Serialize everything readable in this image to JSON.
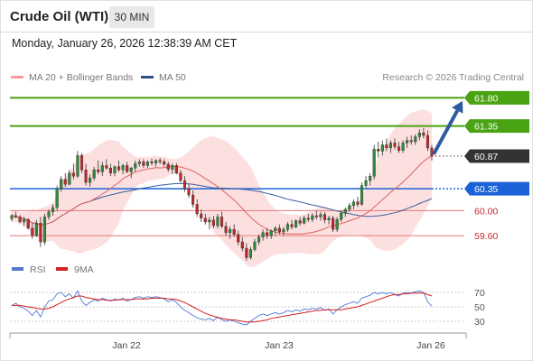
{
  "header": {
    "title": "Crude Oil (WTI)",
    "timeframe": "30 MIN"
  },
  "datetime": "Monday, January 26, 2026 12:38:39 AM CET",
  "legend": {
    "ma20_bb": "MA 20 + Bollinger Bands",
    "ma50": "MA 50"
  },
  "credit": "Research © 2026 Trading Central",
  "rsi_legend": {
    "rsi": "RSI",
    "ma9": "9MA"
  },
  "colors": {
    "up": "#2e8b3a",
    "down": "#c0282b",
    "bollinger_fill": "#fbd6d6",
    "ma20": "#e06060",
    "ma50": "#3a5fa0",
    "resistance": "#4aa312",
    "pivot": "#1a62d6",
    "support": "#e87878",
    "current": "#333333",
    "rsi": "#4a78d8",
    "rsi_ma": "#d42020",
    "arrow": "#2e5aa0"
  },
  "chart_data": {
    "type": "candlestick",
    "x_ticks": [
      "Jan 22",
      "Jan 23",
      "Jan 26"
    ],
    "ylim": [
      59.3,
      61.95
    ],
    "levels": [
      {
        "label": "61.80",
        "value": 61.8,
        "kind": "resistance"
      },
      {
        "label": "61.35",
        "value": 61.35,
        "kind": "resistance"
      },
      {
        "label": "60.87",
        "value": 60.87,
        "kind": "current"
      },
      {
        "label": "60.35",
        "value": 60.35,
        "kind": "pivot"
      },
      {
        "label": "60.00",
        "value": 60.0,
        "kind": "support"
      },
      {
        "label": "59.60",
        "value": 59.6,
        "kind": "support"
      }
    ],
    "forecast_arrow": {
      "from": 60.9,
      "to": 61.75
    },
    "ohlc": [
      [
        59.87,
        59.95,
        59.83,
        59.92
      ],
      [
        59.92,
        59.98,
        59.88,
        59.9
      ],
      [
        59.9,
        59.93,
        59.8,
        59.82
      ],
      [
        59.82,
        59.9,
        59.75,
        59.86
      ],
      [
        59.86,
        59.88,
        59.7,
        59.72
      ],
      [
        59.72,
        59.8,
        59.55,
        59.6
      ],
      [
        59.6,
        59.85,
        59.58,
        59.8
      ],
      [
        59.8,
        59.9,
        59.42,
        59.5
      ],
      [
        59.5,
        59.95,
        59.45,
        59.9
      ],
      [
        59.9,
        60.02,
        59.85,
        59.98
      ],
      [
        59.98,
        60.1,
        59.92,
        60.05
      ],
      [
        60.05,
        60.4,
        60.0,
        60.35
      ],
      [
        60.35,
        60.55,
        60.3,
        60.5
      ],
      [
        60.5,
        60.6,
        60.38,
        60.42
      ],
      [
        60.42,
        60.65,
        60.4,
        60.6
      ],
      [
        60.6,
        60.75,
        60.5,
        60.55
      ],
      [
        60.55,
        60.95,
        60.52,
        60.88
      ],
      [
        60.88,
        60.92,
        60.6,
        60.65
      ],
      [
        60.65,
        60.75,
        60.4,
        60.45
      ],
      [
        60.45,
        60.58,
        60.38,
        60.52
      ],
      [
        60.52,
        60.7,
        60.48,
        60.65
      ],
      [
        60.65,
        60.8,
        60.58,
        60.62
      ],
      [
        60.62,
        60.78,
        60.55,
        60.72
      ],
      [
        60.72,
        60.82,
        60.65,
        60.68
      ],
      [
        60.68,
        60.75,
        60.55,
        60.6
      ],
      [
        60.6,
        60.72,
        60.55,
        60.7
      ],
      [
        60.7,
        60.8,
        60.62,
        60.65
      ],
      [
        60.65,
        60.75,
        60.58,
        60.72
      ],
      [
        60.72,
        60.78,
        60.6,
        60.62
      ],
      [
        60.62,
        60.7,
        60.52,
        60.68
      ],
      [
        60.68,
        60.8,
        60.62,
        60.75
      ],
      [
        60.75,
        60.82,
        60.7,
        60.78
      ],
      [
        60.78,
        60.82,
        60.68,
        60.72
      ],
      [
        60.72,
        60.8,
        60.68,
        60.78
      ],
      [
        60.78,
        60.83,
        60.72,
        60.76
      ],
      [
        60.76,
        60.82,
        60.7,
        60.8
      ],
      [
        60.8,
        60.84,
        60.74,
        60.78
      ],
      [
        60.78,
        60.82,
        60.7,
        60.74
      ],
      [
        60.74,
        60.78,
        60.62,
        60.66
      ],
      [
        60.66,
        60.75,
        60.58,
        60.72
      ],
      [
        60.72,
        60.76,
        60.58,
        60.6
      ],
      [
        60.6,
        60.65,
        60.45,
        60.48
      ],
      [
        60.48,
        60.55,
        60.3,
        60.35
      ],
      [
        60.35,
        60.42,
        60.2,
        60.25
      ],
      [
        60.25,
        60.32,
        60.05,
        60.1
      ],
      [
        60.1,
        60.18,
        59.9,
        59.95
      ],
      [
        59.95,
        60.02,
        59.82,
        59.88
      ],
      [
        59.88,
        59.95,
        59.78,
        59.82
      ],
      [
        59.82,
        59.9,
        59.7,
        59.85
      ],
      [
        59.85,
        59.92,
        59.72,
        59.76
      ],
      [
        59.76,
        59.95,
        59.72,
        59.9
      ],
      [
        59.9,
        59.98,
        59.72,
        59.75
      ],
      [
        59.75,
        59.82,
        59.6,
        59.65
      ],
      [
        59.65,
        59.75,
        59.55,
        59.7
      ],
      [
        59.7,
        59.78,
        59.58,
        59.62
      ],
      [
        59.62,
        59.68,
        59.45,
        59.5
      ],
      [
        59.5,
        59.58,
        59.35,
        59.4
      ],
      [
        59.4,
        59.48,
        59.2,
        59.25
      ],
      [
        59.25,
        59.42,
        59.22,
        59.38
      ],
      [
        59.38,
        59.55,
        59.35,
        59.5
      ],
      [
        59.5,
        59.62,
        59.45,
        59.58
      ],
      [
        59.58,
        59.7,
        59.52,
        59.65
      ],
      [
        59.65,
        59.72,
        59.55,
        59.6
      ],
      [
        59.6,
        59.7,
        59.55,
        59.68
      ],
      [
        59.68,
        59.75,
        59.6,
        59.72
      ],
      [
        59.72,
        59.78,
        59.62,
        59.66
      ],
      [
        59.66,
        59.74,
        59.6,
        59.7
      ],
      [
        59.7,
        59.82,
        59.66,
        59.78
      ],
      [
        59.78,
        59.85,
        59.7,
        59.74
      ],
      [
        59.74,
        59.86,
        59.72,
        59.84
      ],
      [
        59.84,
        59.9,
        59.76,
        59.8
      ],
      [
        59.8,
        59.92,
        59.78,
        59.88
      ],
      [
        59.88,
        59.95,
        59.82,
        59.86
      ],
      [
        59.86,
        59.96,
        59.82,
        59.92
      ],
      [
        59.92,
        60.0,
        59.86,
        59.9
      ],
      [
        59.9,
        59.98,
        59.84,
        59.94
      ],
      [
        59.94,
        59.98,
        59.8,
        59.85
      ],
      [
        59.85,
        59.92,
        59.78,
        59.88
      ],
      [
        59.88,
        59.92,
        59.66,
        59.7
      ],
      [
        59.7,
        59.9,
        59.66,
        59.86
      ],
      [
        59.86,
        60.0,
        59.82,
        59.96
      ],
      [
        59.96,
        60.05,
        59.9,
        60.02
      ],
      [
        60.02,
        60.12,
        59.98,
        60.08
      ],
      [
        60.08,
        60.18,
        60.02,
        60.14
      ],
      [
        60.14,
        60.22,
        60.06,
        60.1
      ],
      [
        60.1,
        60.45,
        60.08,
        60.4
      ],
      [
        60.4,
        60.55,
        60.35,
        60.48
      ],
      [
        60.48,
        60.6,
        60.4,
        60.55
      ],
      [
        60.55,
        61.05,
        60.5,
        60.98
      ],
      [
        60.98,
        61.1,
        60.85,
        60.95
      ],
      [
        60.95,
        61.12,
        60.88,
        61.05
      ],
      [
        61.05,
        61.15,
        60.95,
        61.0
      ],
      [
        61.0,
        61.12,
        60.92,
        61.08
      ],
      [
        61.08,
        61.15,
        60.98,
        61.02
      ],
      [
        61.02,
        61.1,
        60.92,
        60.96
      ],
      [
        60.96,
        61.12,
        60.92,
        61.08
      ],
      [
        61.08,
        61.18,
        61.0,
        61.12
      ],
      [
        61.12,
        61.2,
        61.05,
        61.1
      ],
      [
        61.1,
        61.22,
        61.05,
        61.18
      ],
      [
        61.18,
        61.3,
        61.12,
        61.24
      ],
      [
        61.24,
        61.32,
        61.15,
        61.2
      ],
      [
        61.2,
        61.28,
        60.95,
        61.0
      ],
      [
        61.0,
        61.05,
        60.8,
        60.87
      ]
    ],
    "rsi_axis": {
      "ylim": [
        20,
        80
      ],
      "ticks": [
        70,
        50,
        30
      ]
    },
    "rsi": [
      52,
      55,
      50,
      48,
      44,
      38,
      45,
      36,
      50,
      58,
      60,
      68,
      70,
      64,
      68,
      62,
      72,
      58,
      52,
      56,
      60,
      58,
      62,
      60,
      58,
      61,
      59,
      62,
      58,
      60,
      63,
      64,
      62,
      64,
      63,
      64,
      63,
      61,
      57,
      60,
      56,
      50,
      45,
      42,
      38,
      35,
      33,
      32,
      34,
      31,
      36,
      32,
      30,
      32,
      30,
      28,
      26,
      25,
      30,
      34,
      38,
      40,
      38,
      40,
      42,
      40,
      42,
      45,
      43,
      46,
      44,
      47,
      46,
      48,
      47,
      49,
      45,
      47,
      40,
      46,
      50,
      53,
      55,
      57,
      55,
      62,
      64,
      66,
      70,
      68,
      70,
      68,
      70,
      67,
      65,
      69,
      70,
      69,
      71,
      72,
      70,
      57,
      51
    ],
    "rsi_ma": [
      52,
      52,
      52,
      51,
      50,
      49,
      48,
      47,
      47,
      48,
      50,
      53,
      56,
      59,
      61,
      63,
      65,
      65,
      63,
      62,
      61,
      60,
      60,
      59,
      59,
      59,
      60,
      60,
      60,
      60,
      61,
      61,
      61,
      61,
      62,
      62,
      62,
      62,
      61,
      61,
      60,
      58,
      56,
      53,
      50,
      47,
      44,
      41,
      39,
      37,
      35,
      34,
      33,
      32,
      32,
      31,
      30,
      29,
      29,
      29,
      30,
      31,
      32,
      34,
      35,
      36,
      37,
      38,
      39,
      40,
      41,
      42,
      43,
      44,
      45,
      45,
      46,
      46,
      46,
      46,
      46,
      47,
      48,
      49,
      50,
      52,
      54,
      56,
      58,
      60,
      62,
      64,
      66,
      67,
      67,
      68,
      68,
      69,
      69,
      69,
      69,
      67,
      65
    ]
  }
}
